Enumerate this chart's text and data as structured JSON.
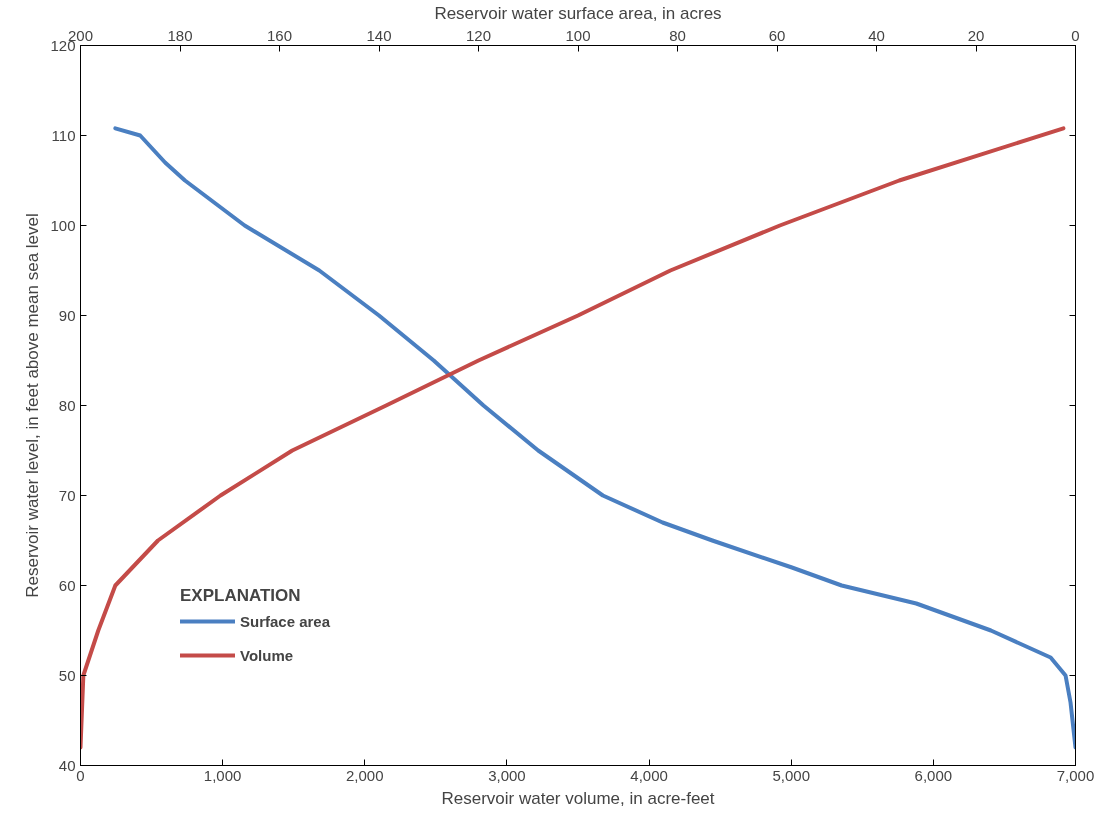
{
  "chart_data": {
    "type": "line",
    "xlabel": "Reservoir water volume, in acre-feet",
    "x2label": "Reservoir water surface area, in acres",
    "ylabel": "Reservoir water level, in feet above mean sea level",
    "legend_title": "EXPLANATION",
    "xlim": [
      0,
      7000
    ],
    "xticks": [
      0,
      {
        "value": 1000,
        "label": "1,000"
      },
      {
        "value": 2000,
        "label": "2,000"
      },
      {
        "value": 3000,
        "label": "3,000"
      },
      {
        "value": 4000,
        "label": "4,000"
      },
      {
        "value": 5000,
        "label": "5,000"
      },
      {
        "value": 6000,
        "label": "6,000"
      },
      {
        "value": 7000,
        "label": "7,000"
      }
    ],
    "x2lim": [
      200,
      0
    ],
    "x2ticks": [
      200,
      180,
      160,
      140,
      120,
      100,
      80,
      60,
      40,
      20,
      0
    ],
    "ylim": [
      40,
      120
    ],
    "yticks": [
      40,
      50,
      60,
      70,
      80,
      90,
      100,
      110,
      120
    ],
    "grid": false,
    "legend": "bottom left",
    "series": [
      {
        "name": "Surface area",
        "color": "#4a7fc1",
        "axis": "x2",
        "x": [
          193,
          188,
          183,
          179,
          167,
          152,
          140,
          129,
          123,
          119,
          108,
          95,
          83,
          73,
          57,
          47,
          32,
          17,
          5,
          2,
          1,
          0
        ],
        "values": [
          110.8,
          110,
          107,
          105,
          100,
          95,
          90,
          85,
          82,
          80,
          75,
          70,
          67,
          65,
          62,
          60,
          58,
          55,
          52,
          50,
          47,
          42
        ]
      },
      {
        "name": "Volume",
        "color": "#c44b48",
        "x": [
          0,
          20,
          125,
          245,
          545,
          985,
          1490,
          2150,
          2800,
          3500,
          4150,
          4920,
          5760,
          6915
        ],
        "values": [
          42,
          50,
          55,
          60,
          65,
          70,
          75,
          80,
          85,
          90,
          95,
          100,
          105,
          110.8
        ]
      }
    ]
  }
}
